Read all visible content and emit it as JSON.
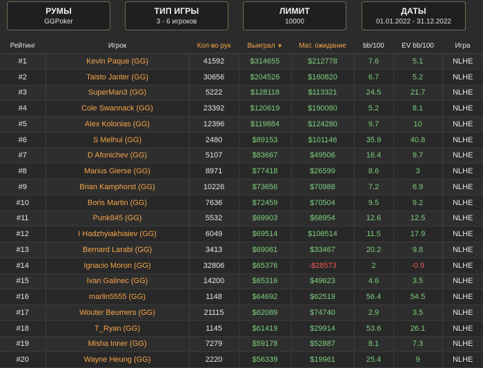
{
  "filters": [
    {
      "title": "РУМЫ",
      "value": "GGPoker"
    },
    {
      "title": "ТИП ИГРЫ",
      "value": "3 - 6 игроков"
    },
    {
      "title": "ЛИМИТ",
      "value": "10000"
    },
    {
      "title": "ДАТЫ",
      "value": "01.01.2022 - 31.12.2022"
    }
  ],
  "columns": {
    "rank": "Рейтинг",
    "player": "Игрок",
    "hands": "Кол-во рук",
    "won": "Выиграл",
    "ev": "Мат. ожидание",
    "bb100": "bb/100",
    "evbb100": "EV bb/100",
    "game": "Игра"
  },
  "sort_icon": "caret-down-icon",
  "rows": [
    {
      "rank": "#1",
      "player": "Kevin Paque (GG)",
      "hands": "41592",
      "won": "$314655",
      "ev": "$212778",
      "bb100": "7.6",
      "evbb100": "5.1",
      "game": "NLHE",
      "ev_neg": false
    },
    {
      "rank": "#2",
      "player": "Taisto Janter (GG)",
      "hands": "30656",
      "won": "$204526",
      "ev": "$160820",
      "bb100": "6.7",
      "evbb100": "5.2",
      "game": "NLHE",
      "ev_neg": false
    },
    {
      "rank": "#3",
      "player": "SuperMan3 (GG)",
      "hands": "5222",
      "won": "$128118",
      "ev": "$113321",
      "bb100": "24.5",
      "evbb100": "21.7",
      "game": "NLHE",
      "ev_neg": false
    },
    {
      "rank": "#4",
      "player": "Cole Swannack (GG)",
      "hands": "23392",
      "won": "$120619",
      "ev": "$190080",
      "bb100": "5.2",
      "evbb100": "8.1",
      "game": "NLHE",
      "ev_neg": false
    },
    {
      "rank": "#5",
      "player": "Alex Kolonias (GG)",
      "hands": "12396",
      "won": "$119884",
      "ev": "$124280",
      "bb100": "9.7",
      "evbb100": "10",
      "game": "NLHE",
      "ev_neg": false
    },
    {
      "rank": "#6",
      "player": "S Melhui (GG)",
      "hands": "2480",
      "won": "$89153",
      "ev": "$101146",
      "bb100": "35.9",
      "evbb100": "40.8",
      "game": "NLHE",
      "ev_neg": false
    },
    {
      "rank": "#7",
      "player": "D Afonichev (GG)",
      "hands": "5107",
      "won": "$83667",
      "ev": "$49506",
      "bb100": "16.4",
      "evbb100": "9.7",
      "game": "NLHE",
      "ev_neg": false
    },
    {
      "rank": "#8",
      "player": "Marius Gierse (GG)",
      "hands": "8971",
      "won": "$77418",
      "ev": "$26599",
      "bb100": "8.6",
      "evbb100": "3",
      "game": "NLHE",
      "ev_neg": false
    },
    {
      "rank": "#9",
      "player": "Brian Kamphorst (GG)",
      "hands": "10226",
      "won": "$73656",
      "ev": "$70988",
      "bb100": "7.2",
      "evbb100": "6.9",
      "game": "NLHE",
      "ev_neg": false
    },
    {
      "rank": "#10",
      "player": "Boris Martin (GG)",
      "hands": "7636",
      "won": "$72459",
      "ev": "$70504",
      "bb100": "9.5",
      "evbb100": "9.2",
      "game": "NLHE",
      "ev_neg": false
    },
    {
      "rank": "#11",
      "player": "Punk845 (GG)",
      "hands": "5532",
      "won": "$69903",
      "ev": "$68954",
      "bb100": "12.6",
      "evbb100": "12.5",
      "game": "NLHE",
      "ev_neg": false
    },
    {
      "rank": "#12",
      "player": "I Hadzhyiakhiaiev (GG)",
      "hands": "6049",
      "won": "$69514",
      "ev": "$108514",
      "bb100": "11.5",
      "evbb100": "17.9",
      "game": "NLHE",
      "ev_neg": false
    },
    {
      "rank": "#13",
      "player": "Bernard Larabi (GG)",
      "hands": "3413",
      "won": "$69061",
      "ev": "$33467",
      "bb100": "20.2",
      "evbb100": "9.8",
      "game": "NLHE",
      "ev_neg": false
    },
    {
      "rank": "#14",
      "player": "Ignacio Moron (GG)",
      "hands": "32806",
      "won": "$65376",
      "ev": "-$28573",
      "bb100": "2",
      "evbb100": "-0.9",
      "game": "NLHE",
      "ev_neg": true
    },
    {
      "rank": "#15",
      "player": "Ivan Galinec (GG)",
      "hands": "14200",
      "won": "$65316",
      "ev": "$49623",
      "bb100": "4.6",
      "evbb100": "3.5",
      "game": "NLHE",
      "ev_neg": false
    },
    {
      "rank": "#16",
      "player": "marlin5555 (GG)",
      "hands": "1148",
      "won": "$64692",
      "ev": "$62519",
      "bb100": "56.4",
      "evbb100": "54.5",
      "game": "NLHE",
      "ev_neg": false
    },
    {
      "rank": "#17",
      "player": "Wouter Beumers (GG)",
      "hands": "21115",
      "won": "$62089",
      "ev": "$74740",
      "bb100": "2.9",
      "evbb100": "3.5",
      "game": "NLHE",
      "ev_neg": false
    },
    {
      "rank": "#18",
      "player": "T_Ryan (GG)",
      "hands": "1145",
      "won": "$61419",
      "ev": "$29914",
      "bb100": "53.6",
      "evbb100": "26.1",
      "game": "NLHE",
      "ev_neg": false
    },
    {
      "rank": "#19",
      "player": "Misha Inner (GG)",
      "hands": "7279",
      "won": "$59178",
      "ev": "$52887",
      "bb100": "8.1",
      "evbb100": "7.3",
      "game": "NLHE",
      "ev_neg": false
    },
    {
      "rank": "#20",
      "player": "Wayne Heung (GG)",
      "hands": "2220",
      "won": "$56339",
      "ev": "$19961",
      "bb100": "25.4",
      "evbb100": "9",
      "game": "NLHE",
      "ev_neg": false
    }
  ],
  "colors": {
    "accent": "#f5a54a",
    "positive": "#7ed07e",
    "negative": "#f05a5a",
    "background": "#2b2b2b"
  }
}
